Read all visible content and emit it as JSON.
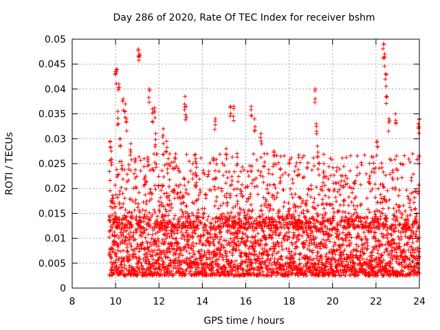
{
  "chart_data": {
    "type": "scatter",
    "title": "Day 286 of 2020, Rate Of TEC Index for receiver bshm",
    "xlabel": "GPS time / hours",
    "ylabel": "ROTI / TECUs",
    "xlim": [
      8,
      24
    ],
    "ylim": [
      0,
      0.05
    ],
    "xticks": [
      8,
      10,
      12,
      14,
      16,
      18,
      20,
      22,
      24
    ],
    "xtick_labels": [
      "8",
      "10",
      "12",
      "14",
      "16",
      "18",
      "20",
      "22",
      "24"
    ],
    "yticks": [
      0,
      0.005,
      0.01,
      0.015,
      0.02,
      0.025,
      0.03,
      0.035,
      0.04,
      0.045,
      0.05
    ],
    "ytick_labels": [
      "0",
      "0.005",
      "0.01",
      "0.015",
      "0.02",
      "0.025",
      "0.03",
      "0.035",
      "0.04",
      "0.045",
      "0.05"
    ],
    "grid": true,
    "marker": "+",
    "series_color": "#ff0000",
    "series": [
      {
        "name": "ROTI",
        "x_start": 9.7,
        "x_end": 24.0,
        "x": [
          9.75,
          9.8,
          9.85,
          10.0,
          10.05,
          10.1,
          10.15,
          10.2,
          10.35,
          10.45,
          10.5,
          10.7,
          10.9,
          11.05,
          11.1,
          11.55,
          11.7,
          11.8,
          11.85,
          12.2,
          12.35,
          13.2,
          13.25,
          13.7,
          14.6,
          15.1,
          15.3,
          15.45,
          15.6,
          16.25,
          16.4,
          16.7,
          17.3,
          17.6,
          19.2,
          19.25,
          19.3,
          19.6,
          21.7,
          22.05,
          22.35,
          22.4,
          22.45,
          22.5,
          22.6,
          22.9,
          23.95,
          24.0
        ],
        "y": [
          0.0295,
          0.0275,
          0.018,
          0.0435,
          0.044,
          0.0355,
          0.041,
          0.03,
          0.038,
          0.037,
          0.034,
          0.029,
          0.026,
          0.048,
          0.047,
          0.04,
          0.036,
          0.0362,
          0.031,
          0.032,
          0.0295,
          0.0385,
          0.0365,
          0.026,
          0.034,
          0.028,
          0.0365,
          0.0365,
          0.027,
          0.0365,
          0.034,
          0.031,
          0.0275,
          0.024,
          0.04,
          0.033,
          0.0285,
          0.025,
          0.022,
          0.0295,
          0.049,
          0.047,
          0.043,
          0.0385,
          0.034,
          0.035,
          0.033,
          0.034
        ]
      }
    ]
  }
}
